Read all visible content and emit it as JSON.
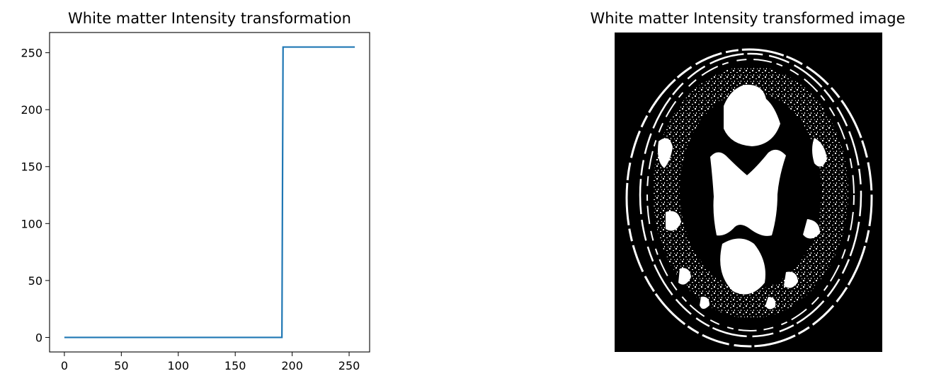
{
  "chart_data": [
    {
      "type": "line",
      "title": "White matter Intensity transformation",
      "xlabel": "",
      "ylabel": "",
      "xlim": [
        -13,
        268
      ],
      "ylim": [
        -12.75,
        267.75
      ],
      "xticks": [
        0,
        50,
        100,
        150,
        200,
        250
      ],
      "yticks": [
        0,
        50,
        100,
        150,
        200,
        250
      ],
      "grid": false,
      "series": [
        {
          "color": "#1f77b4",
          "x": [
            0,
            191,
            192,
            255
          ],
          "y": [
            0,
            0,
            255,
            255
          ]
        }
      ]
    },
    {
      "type": "image",
      "title": "White matter Intensity transformed image",
      "colormap": "gray",
      "axes_visible": false,
      "content": "binary thresholded axial brain MRI slice (white matter shown white on black)"
    }
  ]
}
